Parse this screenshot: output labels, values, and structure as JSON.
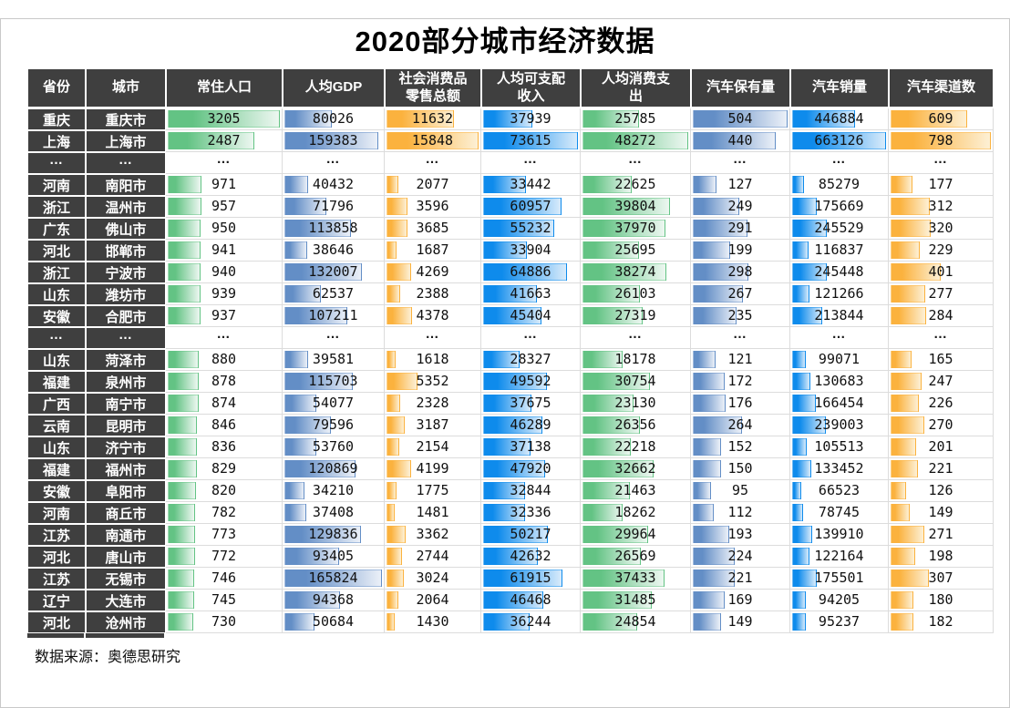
{
  "title": "2020部分城市经济数据",
  "source_note": "数据来源：奥德思研究",
  "chart_data": {
    "type": "table",
    "title": "2020部分城市经济数据",
    "source": "奥德思研究",
    "ellipsis_marker": "…",
    "bar_colors": {
      "green": {
        "from": "#63C384",
        "to": "#EDF7F1",
        "edge": "#63C38480"
      },
      "steel": {
        "from": "#638EC6",
        "to": "#EBF0F8",
        "edge": "#638EC680"
      },
      "orange": {
        "from": "#FBB23E",
        "to": "#FDF0D5",
        "edge": "#FBB23E80"
      },
      "blue": {
        "from": "#0E8BEC",
        "to": "#D8EBFB",
        "edge": "#0E8BEC80"
      }
    },
    "columns": [
      {
        "key": "province",
        "label": "省份",
        "kind": "text"
      },
      {
        "key": "city",
        "label": "城市",
        "kind": "text"
      },
      {
        "key": "population",
        "label": "常住人口",
        "kind": "bar",
        "color": "green"
      },
      {
        "key": "gdp-per-capita",
        "label": "人均GDP",
        "kind": "bar",
        "color": "steel"
      },
      {
        "key": "retail-sales",
        "label": "社会消费品\n零售总额",
        "kind": "bar",
        "color": "orange"
      },
      {
        "key": "disposable-income",
        "label": "人均可支配\n收入",
        "kind": "bar",
        "color": "blue"
      },
      {
        "key": "consumption",
        "label": "人均消费支\n出",
        "kind": "bar",
        "color": "green"
      },
      {
        "key": "car-ownership",
        "label": "汽车保有量",
        "kind": "bar",
        "color": "steel"
      },
      {
        "key": "car-sales",
        "label": "汽车销量",
        "kind": "bar",
        "color": "blue"
      },
      {
        "key": "car-channels",
        "label": "汽车渠道数",
        "kind": "bar",
        "color": "orange"
      }
    ],
    "rows": [
      {
        "province": "重庆",
        "city": "重庆市",
        "values": [
          3205,
          80026,
          11632,
          37939,
          25785,
          504,
          446884,
          609
        ]
      },
      {
        "province": "上海",
        "city": "上海市",
        "values": [
          2487,
          159383,
          15848,
          73615,
          48272,
          440,
          663126,
          798
        ]
      },
      {
        "ellipsis": true
      },
      {
        "province": "河南",
        "city": "南阳市",
        "values": [
          971,
          40432,
          2077,
          33442,
          22625,
          127,
          85279,
          177
        ]
      },
      {
        "province": "浙江",
        "city": "温州市",
        "values": [
          957,
          71796,
          3596,
          60957,
          39804,
          249,
          175669,
          312
        ]
      },
      {
        "province": "广东",
        "city": "佛山市",
        "values": [
          950,
          113858,
          3685,
          55232,
          37970,
          291,
          245529,
          320
        ]
      },
      {
        "province": "河北",
        "city": "邯郸市",
        "values": [
          941,
          38646,
          1687,
          33904,
          25695,
          199,
          116837,
          229
        ]
      },
      {
        "province": "浙江",
        "city": "宁波市",
        "values": [
          940,
          132007,
          4269,
          64886,
          38274,
          298,
          245448,
          401
        ]
      },
      {
        "province": "山东",
        "city": "潍坊市",
        "values": [
          939,
          62537,
          2388,
          41663,
          26103,
          267,
          121266,
          277
        ]
      },
      {
        "province": "安徽",
        "city": "合肥市",
        "values": [
          937,
          107211,
          4378,
          45404,
          27319,
          235,
          213844,
          284
        ]
      },
      {
        "ellipsis": true
      },
      {
        "province": "山东",
        "city": "菏泽市",
        "values": [
          880,
          39581,
          1618,
          28327,
          18178,
          121,
          99071,
          165
        ]
      },
      {
        "province": "福建",
        "city": "泉州市",
        "values": [
          878,
          115703,
          5352,
          49592,
          30754,
          172,
          130683,
          247
        ]
      },
      {
        "province": "广西",
        "city": "南宁市",
        "values": [
          874,
          54077,
          2328,
          37675,
          23130,
          176,
          166454,
          226
        ]
      },
      {
        "province": "云南",
        "city": "昆明市",
        "values": [
          846,
          79596,
          3187,
          46289,
          26356,
          264,
          239003,
          270
        ]
      },
      {
        "province": "山东",
        "city": "济宁市",
        "values": [
          836,
          53760,
          2154,
          37138,
          22218,
          152,
          105513,
          201
        ]
      },
      {
        "province": "福建",
        "city": "福州市",
        "values": [
          829,
          120869,
          4199,
          47920,
          32662,
          150,
          133452,
          221
        ]
      },
      {
        "province": "安徽",
        "city": "阜阳市",
        "values": [
          820,
          34210,
          1775,
          32844,
          21463,
          95,
          66523,
          126
        ]
      },
      {
        "province": "河南",
        "city": "商丘市",
        "values": [
          782,
          37408,
          1481,
          32336,
          18262,
          112,
          78745,
          149
        ]
      },
      {
        "province": "江苏",
        "city": "南通市",
        "values": [
          773,
          129836,
          3362,
          50217,
          29964,
          193,
          139910,
          271
        ]
      },
      {
        "province": "河北",
        "city": "唐山市",
        "values": [
          772,
          93405,
          2744,
          42632,
          26569,
          224,
          122164,
          198
        ]
      },
      {
        "province": "江苏",
        "city": "无锡市",
        "values": [
          746,
          165824,
          3024,
          61915,
          37433,
          221,
          175501,
          307
        ]
      },
      {
        "province": "辽宁",
        "city": "大连市",
        "values": [
          745,
          94368,
          2064,
          46468,
          31485,
          169,
          94205,
          180
        ]
      },
      {
        "province": "河北",
        "city": "沧州市",
        "values": [
          730,
          50684,
          1430,
          36244,
          24854,
          149,
          95237,
          182
        ]
      }
    ]
  }
}
